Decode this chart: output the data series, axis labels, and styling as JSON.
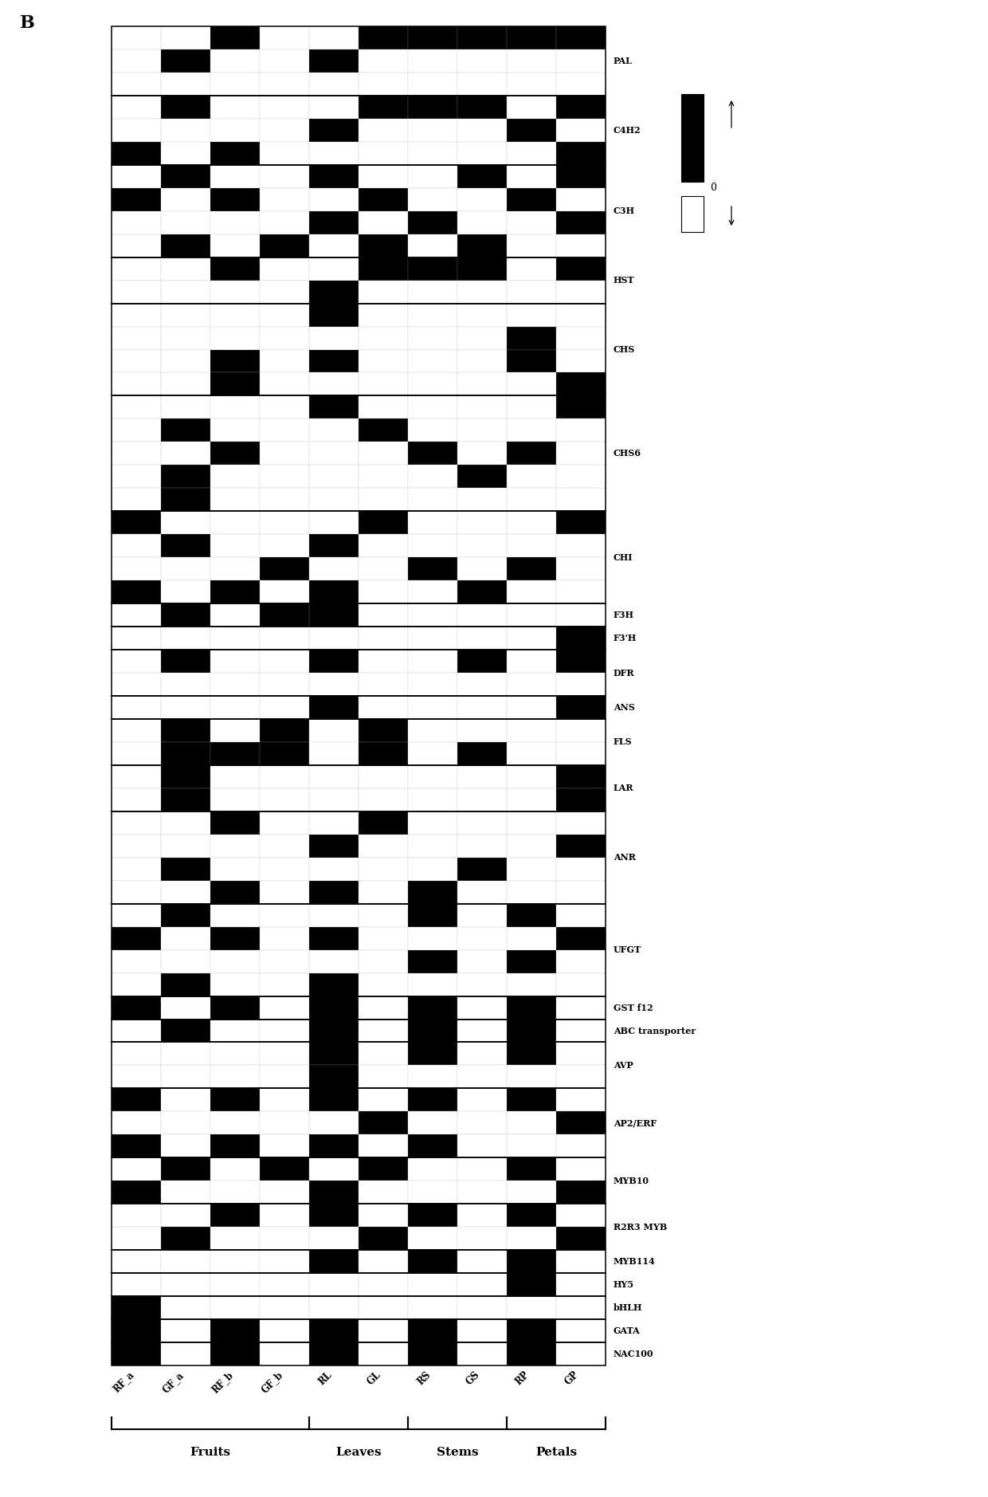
{
  "genes": [
    "PAL",
    "C4H2",
    "C3H",
    "HST",
    "CHS",
    "CHS6",
    "CHI",
    "F3H",
    "F3'H",
    "DFR",
    "ANS",
    "FLS",
    "LAR",
    "ANR",
    "UFGT",
    "GST f12",
    "ABC transporter",
    "AVP",
    "AP2/ERF",
    "MYB10",
    "R2R3 MYB",
    "MYB114",
    "HY5",
    "bHLH",
    "GATA",
    "NAC100"
  ],
  "columns": [
    "RF_a",
    "GF_a",
    "RF_b",
    "GF_b",
    "RL",
    "GL",
    "RS",
    "GS",
    "RP",
    "GP"
  ],
  "gene_data": {
    "PAL": [
      [
        0,
        0,
        1,
        0,
        0,
        1,
        1,
        1,
        1,
        1
      ],
      [
        0,
        1,
        0,
        0,
        1,
        0,
        0,
        0,
        0,
        0
      ],
      [
        0,
        0,
        0,
        0,
        0,
        0,
        0,
        0,
        0,
        0
      ]
    ],
    "C4H2": [
      [
        0,
        1,
        0,
        0,
        0,
        1,
        1,
        1,
        0,
        1
      ],
      [
        0,
        0,
        0,
        0,
        1,
        0,
        0,
        0,
        1,
        0
      ],
      [
        1,
        0,
        1,
        0,
        0,
        0,
        0,
        0,
        0,
        1
      ]
    ],
    "C3H": [
      [
        0,
        1,
        0,
        0,
        1,
        0,
        0,
        1,
        0,
        1
      ],
      [
        1,
        0,
        1,
        0,
        0,
        1,
        0,
        0,
        1,
        0
      ],
      [
        0,
        0,
        0,
        0,
        1,
        0,
        1,
        0,
        0,
        1
      ],
      [
        0,
        1,
        0,
        1,
        0,
        1,
        0,
        1,
        0,
        0
      ]
    ],
    "HST": [
      [
        0,
        0,
        1,
        0,
        0,
        1,
        1,
        1,
        0,
        1
      ],
      [
        0,
        0,
        0,
        0,
        1,
        0,
        0,
        0,
        0,
        0
      ]
    ],
    "CHS": [
      [
        0,
        0,
        0,
        0,
        1,
        0,
        0,
        0,
        0,
        0
      ],
      [
        0,
        0,
        0,
        0,
        0,
        0,
        0,
        0,
        1,
        0
      ],
      [
        0,
        0,
        1,
        0,
        1,
        0,
        0,
        0,
        1,
        0
      ],
      [
        0,
        0,
        1,
        0,
        0,
        0,
        0,
        0,
        0,
        1
      ]
    ],
    "CHS6": [
      [
        0,
        0,
        0,
        0,
        1,
        0,
        0,
        0,
        0,
        1
      ],
      [
        0,
        1,
        0,
        0,
        0,
        1,
        0,
        0,
        0,
        0
      ],
      [
        0,
        0,
        1,
        0,
        0,
        0,
        1,
        0,
        1,
        0
      ],
      [
        0,
        1,
        0,
        0,
        0,
        0,
        0,
        1,
        0,
        0
      ],
      [
        0,
        1,
        0,
        0,
        0,
        0,
        0,
        0,
        0,
        0
      ]
    ],
    "CHI": [
      [
        1,
        0,
        0,
        0,
        0,
        1,
        0,
        0,
        0,
        1
      ],
      [
        0,
        1,
        0,
        0,
        1,
        0,
        0,
        0,
        0,
        0
      ],
      [
        0,
        0,
        0,
        1,
        0,
        0,
        1,
        0,
        1,
        0
      ],
      [
        1,
        0,
        1,
        0,
        1,
        0,
        0,
        1,
        0,
        0
      ]
    ],
    "F3H": [
      [
        0,
        1,
        0,
        1,
        1,
        0,
        0,
        0,
        0,
        0
      ]
    ],
    "F3'H": [
      [
        0,
        0,
        0,
        0,
        0,
        0,
        0,
        0,
        0,
        1
      ]
    ],
    "DFR": [
      [
        0,
        1,
        0,
        0,
        1,
        0,
        0,
        1,
        0,
        1
      ],
      [
        0,
        0,
        0,
        0,
        0,
        0,
        0,
        0,
        0,
        0
      ]
    ],
    "ANS": [
      [
        0,
        0,
        0,
        0,
        1,
        0,
        0,
        0,
        0,
        1
      ]
    ],
    "FLS": [
      [
        0,
        1,
        0,
        1,
        0,
        1,
        0,
        0,
        0,
        0
      ],
      [
        0,
        1,
        1,
        1,
        0,
        1,
        0,
        1,
        0,
        0
      ]
    ],
    "LAR": [
      [
        0,
        1,
        0,
        0,
        0,
        0,
        0,
        0,
        0,
        1
      ],
      [
        0,
        1,
        0,
        0,
        0,
        0,
        0,
        0,
        0,
        1
      ]
    ],
    "ANR": [
      [
        0,
        0,
        1,
        0,
        0,
        1,
        0,
        0,
        0,
        0
      ],
      [
        0,
        0,
        0,
        0,
        1,
        0,
        0,
        0,
        0,
        1
      ],
      [
        0,
        1,
        0,
        0,
        0,
        0,
        0,
        1,
        0,
        0
      ],
      [
        0,
        0,
        1,
        0,
        1,
        0,
        1,
        0,
        0,
        0
      ]
    ],
    "UFGT": [
      [
        0,
        1,
        0,
        0,
        0,
        0,
        1,
        0,
        1,
        0
      ],
      [
        1,
        0,
        1,
        0,
        1,
        0,
        0,
        0,
        0,
        1
      ],
      [
        0,
        0,
        0,
        0,
        0,
        0,
        1,
        0,
        1,
        0
      ],
      [
        0,
        1,
        0,
        0,
        1,
        0,
        0,
        0,
        0,
        0
      ]
    ],
    "GST f12": [
      [
        1,
        0,
        1,
        0,
        1,
        0,
        1,
        0,
        1,
        0
      ]
    ],
    "ABC transporter": [
      [
        0,
        1,
        0,
        0,
        1,
        0,
        1,
        0,
        1,
        0
      ]
    ],
    "AVP": [
      [
        0,
        0,
        0,
        0,
        1,
        0,
        1,
        0,
        1,
        0
      ],
      [
        0,
        0,
        0,
        0,
        1,
        0,
        0,
        0,
        0,
        0
      ]
    ],
    "AP2/ERF": [
      [
        1,
        0,
        1,
        0,
        1,
        0,
        1,
        0,
        1,
        0
      ],
      [
        0,
        0,
        0,
        0,
        0,
        1,
        0,
        0,
        0,
        1
      ],
      [
        1,
        0,
        1,
        0,
        1,
        0,
        1,
        0,
        0,
        0
      ]
    ],
    "MYB10": [
      [
        0,
        1,
        0,
        1,
        0,
        1,
        0,
        0,
        1,
        0
      ],
      [
        1,
        0,
        0,
        0,
        1,
        0,
        0,
        0,
        0,
        1
      ]
    ],
    "R2R3 MYB": [
      [
        0,
        0,
        1,
        0,
        1,
        0,
        1,
        0,
        1,
        0
      ],
      [
        0,
        1,
        0,
        0,
        0,
        1,
        0,
        0,
        0,
        1
      ]
    ],
    "MYB114": [
      [
        0,
        0,
        0,
        0,
        1,
        0,
        1,
        0,
        1,
        0
      ]
    ],
    "HY5": [
      [
        0,
        0,
        0,
        0,
        0,
        0,
        0,
        0,
        1,
        0
      ]
    ],
    "bHLH": [
      [
        1,
        0,
        0,
        0,
        0,
        0,
        0,
        0,
        0,
        0
      ]
    ],
    "GATA": [
      [
        1,
        0,
        1,
        0,
        1,
        0,
        1,
        0,
        1,
        0
      ]
    ],
    "NAC100": [
      [
        1,
        0,
        1,
        0,
        1,
        0,
        1,
        0,
        1,
        0
      ]
    ]
  },
  "group_brackets": [
    {
      "name": "Fruits",
      "start": 0,
      "end": 3
    },
    {
      "name": "Leaves",
      "start": 4,
      "end": 5
    },
    {
      "name": "Stems",
      "start": 6,
      "end": 7
    },
    {
      "name": "Petals",
      "start": 8,
      "end": 9
    }
  ],
  "title_label": "B"
}
